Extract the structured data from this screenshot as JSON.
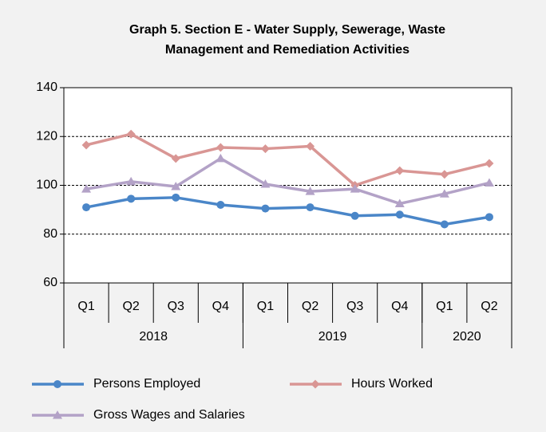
{
  "chart_data": {
    "type": "line",
    "title": [
      "Graph 5. Section E - Water Supply, Sewerage, Waste",
      "Management and Remediation Activities"
    ],
    "categories": [
      "Q1",
      "Q2",
      "Q3",
      "Q4",
      "Q1",
      "Q2",
      "Q3",
      "Q4",
      "Q1",
      "Q2"
    ],
    "groups": [
      {
        "label": "2018",
        "span": 4
      },
      {
        "label": "2019",
        "span": 4
      },
      {
        "label": "2020",
        "span": 2
      }
    ],
    "series": [
      {
        "name": "Persons Employed",
        "color": "#4a86c8",
        "marker": "circle",
        "values": [
          91,
          94.5,
          95,
          92,
          90.5,
          91,
          87.5,
          88,
          84,
          87
        ]
      },
      {
        "name": "Hours Worked",
        "color": "#d99694",
        "marker": "diamond",
        "values": [
          116.5,
          121,
          111,
          115.5,
          115,
          116,
          100,
          106,
          104.5,
          109
        ]
      },
      {
        "name": "Gross Wages and Salaries",
        "color": "#b3a2c7",
        "marker": "triangle",
        "values": [
          98.5,
          101.5,
          99.5,
          111,
          100.5,
          97.5,
          98.5,
          92.5,
          96.5,
          101
        ]
      }
    ],
    "ylim": [
      60,
      140
    ],
    "yticks": [
      60,
      80,
      100,
      120,
      140
    ],
    "grid": true
  }
}
